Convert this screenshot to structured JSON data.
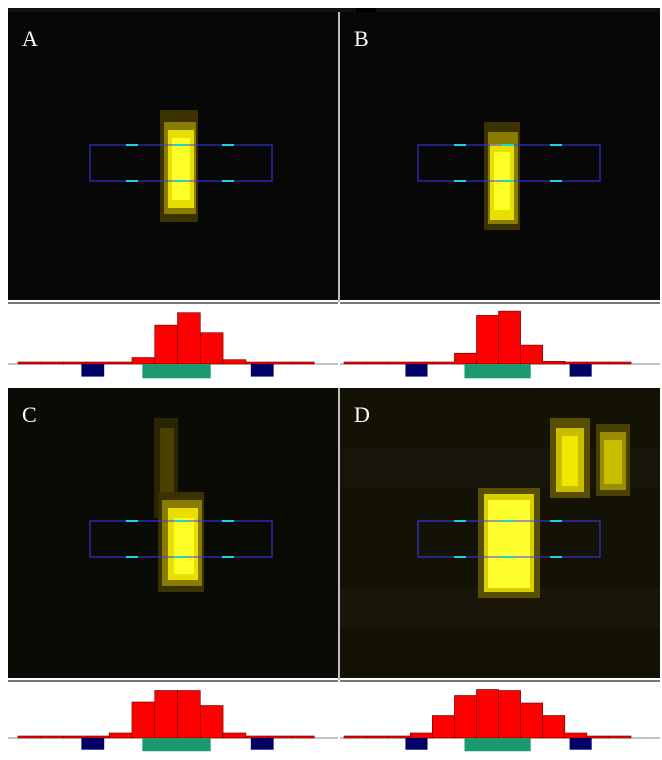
{
  "panels": [
    {
      "label": "A",
      "blob_color": "#f5f000",
      "glow_color": "#5a4a00"
    },
    {
      "label": "B",
      "blob_color": "#f5f000",
      "glow_color": "#5a4a00"
    },
    {
      "label": "C",
      "blob_color": "#f5f000",
      "glow_color": "#5a4a00"
    },
    {
      "label": "D",
      "blob_color": "#ffff30",
      "glow_color": "#6a5800"
    }
  ],
  "colors": {
    "background": "#080808",
    "roi_box": "#3a3aff",
    "roi_ticks": "#22d3d3",
    "histogram_signal": "#ff0000",
    "histogram_core": "#1a9a6e",
    "histogram_background_bins": "#000066"
  },
  "histograms": [
    {
      "panel": "A",
      "red": [
        0.03,
        0.03,
        0.03,
        0.03,
        0.03,
        0.12,
        0.72,
        0.95,
        0.58,
        0.08,
        0.03,
        0.03,
        0.03
      ],
      "green": [
        0.2,
        0.2,
        0.2
      ],
      "blue": [
        1,
        1
      ]
    },
    {
      "panel": "B",
      "red": [
        0.03,
        0.03,
        0.03,
        0.03,
        0.03,
        0.2,
        0.9,
        0.98,
        0.35,
        0.05,
        0.03,
        0.03,
        0.03
      ],
      "green": [
        0.2,
        0.2,
        0.2
      ],
      "blue": [
        1,
        1
      ]
    },
    {
      "panel": "C",
      "red": [
        0.03,
        0.03,
        0.03,
        0.03,
        0.1,
        0.72,
        0.95,
        0.95,
        0.65,
        0.1,
        0.03,
        0.03,
        0.03
      ],
      "green": [
        0.2,
        0.2,
        0.2
      ],
      "blue": [
        1,
        1
      ]
    },
    {
      "panel": "D",
      "red": [
        0.03,
        0.03,
        0.03,
        0.1,
        0.45,
        0.85,
        0.97,
        0.95,
        0.7,
        0.45,
        0.1,
        0.03,
        0.03
      ],
      "green": [
        0.2,
        0.2,
        0.2
      ],
      "blue": [
        1,
        1
      ]
    }
  ]
}
